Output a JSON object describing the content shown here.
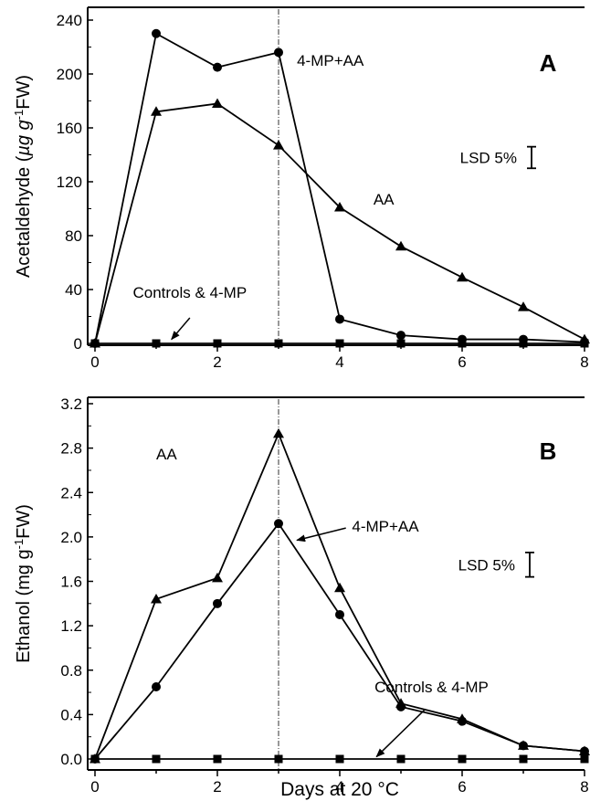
{
  "chart_data": [
    {
      "type": "line",
      "panel_label": "A",
      "ylabel_main": "Acetaldehyde (",
      "ylabel_unit": "µg g",
      "ylabel_exp": "-1",
      "ylabel_tail": "FW)",
      "x_ticks": [
        "0",
        "2",
        "4",
        "6",
        "8"
      ],
      "y_ticks": [
        "0",
        "40",
        "80",
        "120",
        "160",
        "200",
        "240"
      ],
      "xlim": [
        0,
        8
      ],
      "ylim": [
        0,
        240
      ],
      "vline_x": 3,
      "series": [
        {
          "name": "4-MP+AA",
          "marker": "circle",
          "x": [
            0,
            1,
            2,
            3,
            4,
            5,
            6,
            7,
            8
          ],
          "values": [
            0,
            230,
            205,
            216,
            18,
            6,
            3,
            3,
            1
          ]
        },
        {
          "name": "AA",
          "marker": "triangle",
          "x": [
            0,
            1,
            2,
            3,
            4,
            5,
            6,
            7,
            8
          ],
          "values": [
            0,
            172,
            178,
            147,
            101,
            72,
            49,
            27,
            3
          ]
        },
        {
          "name": "Controls & 4-MP",
          "marker": "square",
          "x": [
            0,
            1,
            2,
            3,
            4,
            5,
            6,
            7,
            8
          ],
          "values": [
            0,
            0,
            0,
            0,
            0,
            0,
            0,
            0,
            0
          ]
        }
      ],
      "lsd": {
        "label": "LSD 5%",
        "length": 16,
        "center": 138
      },
      "annotations": {
        "mpaa": {
          "text": "4-MP+AA",
          "x": 3.3,
          "y": 206
        },
        "aa": {
          "text": "AA",
          "x": 4.55,
          "y": 103
        },
        "controls": {
          "text": "Controls & 4-MP",
          "x": 1.55,
          "y": 34
        }
      },
      "controls_arrow": {
        "from": [
          1.55,
          19
        ],
        "to": [
          1.25,
          3
        ]
      }
    },
    {
      "type": "line",
      "panel_label": "B",
      "ylabel": "Ethanol (mg g",
      "ylabel_exp": "-1",
      "ylabel_tail": "FW)",
      "x_ticks": [
        "0",
        "2",
        "4",
        "6",
        "8"
      ],
      "y_ticks": [
        "0.0",
        "0.4",
        "0.8",
        "1.2",
        "1.6",
        "2.0",
        "2.4",
        "2.8",
        "3.2"
      ],
      "xlim": [
        0,
        8
      ],
      "ylim": [
        0,
        3.2
      ],
      "vline_x": 3,
      "xlabel": "Days at 20 °C",
      "series": [
        {
          "name": "AA",
          "marker": "triangle",
          "x": [
            0,
            1,
            2,
            3,
            4,
            5,
            6,
            7,
            8
          ],
          "values": [
            0,
            1.44,
            1.63,
            2.93,
            1.54,
            0.5,
            0.36,
            0.12,
            0.07
          ]
        },
        {
          "name": "4-MP+AA",
          "marker": "circle",
          "x": [
            0,
            1,
            2,
            3,
            4,
            5,
            6,
            7,
            8
          ],
          "values": [
            0,
            0.65,
            1.4,
            2.12,
            1.3,
            0.47,
            0.34,
            0.12,
            0.07
          ]
        },
        {
          "name": "Controls & 4-MP",
          "marker": "square",
          "x": [
            0,
            1,
            2,
            3,
            4,
            5,
            6,
            7,
            8
          ],
          "values": [
            0,
            0,
            0,
            0,
            0,
            0,
            0,
            0,
            0
          ]
        }
      ],
      "lsd": {
        "label": "LSD 5%",
        "length": 0.22,
        "center": 1.75
      },
      "annotations": {
        "aa": {
          "text": "AA",
          "x": 1.0,
          "y": 2.7
        },
        "mpaa": {
          "text": "4-MP+AA",
          "x": 4.2,
          "y": 2.05
        },
        "controls": {
          "text": "Controls & 4-MP",
          "x": 5.5,
          "y": 0.6
        }
      },
      "mpaa_arrow": {
        "from": [
          4.1,
          2.08
        ],
        "to": [
          3.3,
          1.97
        ]
      },
      "controls_arrow": {
        "from": [
          5.4,
          0.45
        ],
        "to": [
          4.6,
          0.02
        ]
      }
    }
  ]
}
